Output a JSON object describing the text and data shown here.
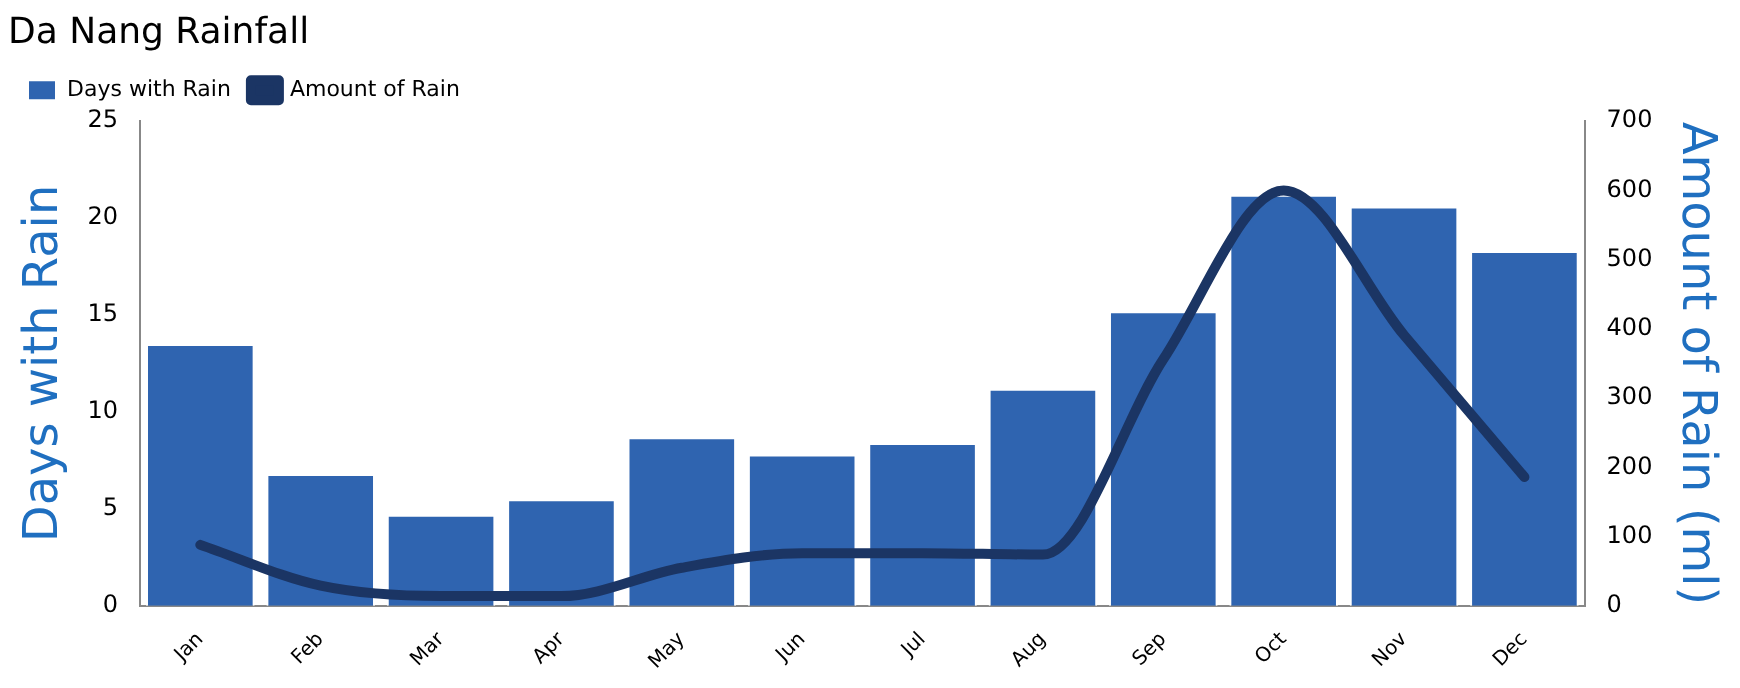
{
  "chart_data": {
    "type": "bar",
    "title": "Da Nang Rainfall",
    "ylabel": "Days with Rain",
    "y2label": "Amount of Rain (ml)",
    "categories": [
      "Jan",
      "Feb",
      "Mar",
      "Apr",
      "May",
      "Jun",
      "Jul",
      "Aug",
      "Sep",
      "Oct",
      "Nov",
      "Dec"
    ],
    "series": [
      {
        "name": "Days with Rain",
        "color": "#2f64b0",
        "values": [
          13.5,
          6.8,
          4.7,
          5.5,
          8.7,
          7.8,
          8.4,
          11.2,
          15.2,
          21.2,
          20.6,
          18.3
        ]
      },
      {
        "name": "Amount of Rain",
        "type": "line",
        "axis": "y2",
        "color": "#1b3564",
        "values": [
          88,
          29,
          14,
          14,
          55,
          76,
          76,
          74,
          356,
          600,
          391,
          186
        ]
      }
    ],
    "ylim": [
      0,
      25
    ],
    "yticks": [
      0,
      5,
      10,
      15,
      20,
      25
    ],
    "y2lim": [
      0,
      700
    ],
    "y2ticks": [
      0,
      100,
      200,
      300,
      400,
      500,
      600,
      700
    ],
    "grid": false,
    "legend": "top left",
    "marker": "none",
    "line_style": "solid"
  }
}
